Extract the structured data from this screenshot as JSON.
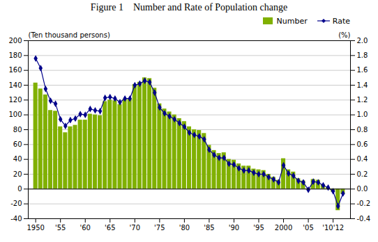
{
  "chart_data": {
    "type": "bar",
    "title": "Figure 1    Number and Rate of Population change",
    "ylabel": "(Ten thousand persons)",
    "y2label": "(%)",
    "x": [
      1950,
      1951,
      1952,
      1953,
      1954,
      1955,
      1956,
      1957,
      1958,
      1959,
      1960,
      1961,
      1962,
      1963,
      1964,
      1965,
      1966,
      1967,
      1968,
      1969,
      1970,
      1971,
      1972,
      1973,
      1974,
      1975,
      1976,
      1977,
      1978,
      1979,
      1980,
      1981,
      1982,
      1983,
      1984,
      1985,
      1986,
      1987,
      1988,
      1989,
      1990,
      1991,
      1992,
      1993,
      1994,
      1995,
      1996,
      1997,
      1998,
      1999,
      2000,
      2001,
      2002,
      2003,
      2004,
      2005,
      2006,
      2007,
      2008,
      2009,
      2010,
      2011,
      2012
    ],
    "series": [
      {
        "name": "Number",
        "type": "bar",
        "color": "#80b000",
        "values": [
          143,
          135,
          127,
          106,
          105,
          84,
          76,
          84,
          86,
          93,
          93,
          101,
          100,
          99,
          118,
          120,
          119,
          114,
          121,
          122,
          141,
          144,
          150,
          149,
          136,
          115,
          108,
          104,
          100,
          95,
          91,
          84,
          80,
          79,
          75,
          59,
          52,
          48,
          49,
          40,
          39,
          34,
          31,
          31,
          27,
          26,
          25,
          20,
          16,
          12,
          41,
          26,
          23,
          14,
          11,
          -1,
          13,
          12,
          6,
          2,
          -4,
          -29,
          -7
        ]
      },
      {
        "name": "Rate",
        "type": "line",
        "color": "#00008b",
        "marker": "diamond",
        "axis": "y2",
        "values": [
          1.76,
          1.63,
          1.35,
          1.19,
          1.15,
          0.94,
          0.85,
          0.93,
          0.95,
          1.01,
          1.0,
          1.08,
          1.06,
          1.05,
          1.23,
          1.24,
          1.22,
          1.17,
          1.22,
          1.22,
          1.4,
          1.42,
          1.46,
          1.44,
          1.3,
          1.1,
          1.02,
          0.98,
          0.94,
          0.89,
          0.84,
          0.76,
          0.73,
          0.71,
          0.67,
          0.53,
          0.46,
          0.42,
          0.42,
          0.34,
          0.33,
          0.28,
          0.25,
          0.25,
          0.22,
          0.2,
          0.2,
          0.16,
          0.13,
          0.09,
          0.32,
          0.21,
          0.18,
          0.11,
          0.09,
          -0.01,
          0.1,
          0.09,
          0.05,
          0.02,
          -0.03,
          -0.23,
          -0.06
        ]
      }
    ],
    "xlim": [
      1948.5,
      2013.5
    ],
    "xticks": [
      1950,
      {
        "value": 1955,
        "label": "'55"
      },
      {
        "value": 1960,
        "label": "'60"
      },
      {
        "value": 1965,
        "label": "'65"
      },
      {
        "value": 1970,
        "label": "'70"
      },
      {
        "value": 1975,
        "label": "'75"
      },
      {
        "value": 1980,
        "label": "'80"
      },
      {
        "value": 1985,
        "label": "'85"
      },
      {
        "value": 1990,
        "label": "'90"
      },
      {
        "value": 1995,
        "label": "'95"
      },
      2000,
      {
        "value": 2005,
        "label": "'05"
      },
      {
        "value": 2010,
        "label": "'10'12"
      }
    ],
    "ylim": [
      -40,
      200
    ],
    "yticks": [
      -40,
      -20,
      0,
      20,
      40,
      60,
      80,
      100,
      120,
      140,
      160,
      180,
      200
    ],
    "y2lim": [
      -0.4,
      2.0
    ],
    "y2ticks": [
      -0.4,
      -0.2,
      {
        "value": 0,
        "label": "0.0"
      },
      0.2,
      0.4,
      0.6,
      0.8,
      {
        "value": 1,
        "label": "1.0"
      },
      1.2,
      1.4,
      1.6,
      1.8,
      {
        "value": 2,
        "label": "2.0"
      }
    ],
    "grid": true,
    "legend": "upper right"
  }
}
